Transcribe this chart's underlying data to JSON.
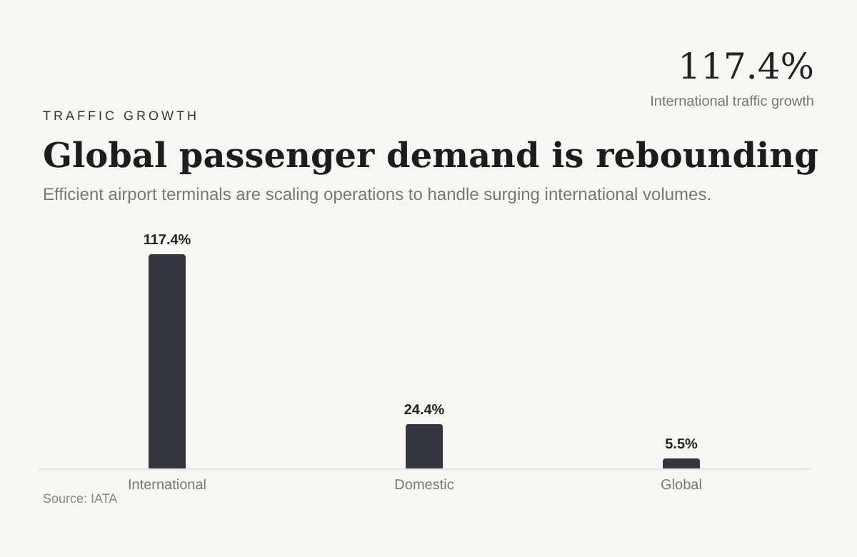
{
  "chart_data": {
    "type": "bar",
    "title": "Global passenger demand is rebounding",
    "subtitle": "Efficient airport terminals are scaling operations to handle surging international volumes.",
    "annotations": [
      "TRAFFIC GROWTH",
      "117.4%",
      "International traffic growth",
      "Source: IATA"
    ],
    "categories": [
      "International",
      "Domestic",
      "Global"
    ],
    "values": [
      117.4,
      24.4,
      5.5
    ],
    "value_labels": [
      "117.4%",
      "24.4%",
      "5.5%"
    ],
    "color": "#33363f",
    "tick_labels": "x",
    "grid": false
  }
}
